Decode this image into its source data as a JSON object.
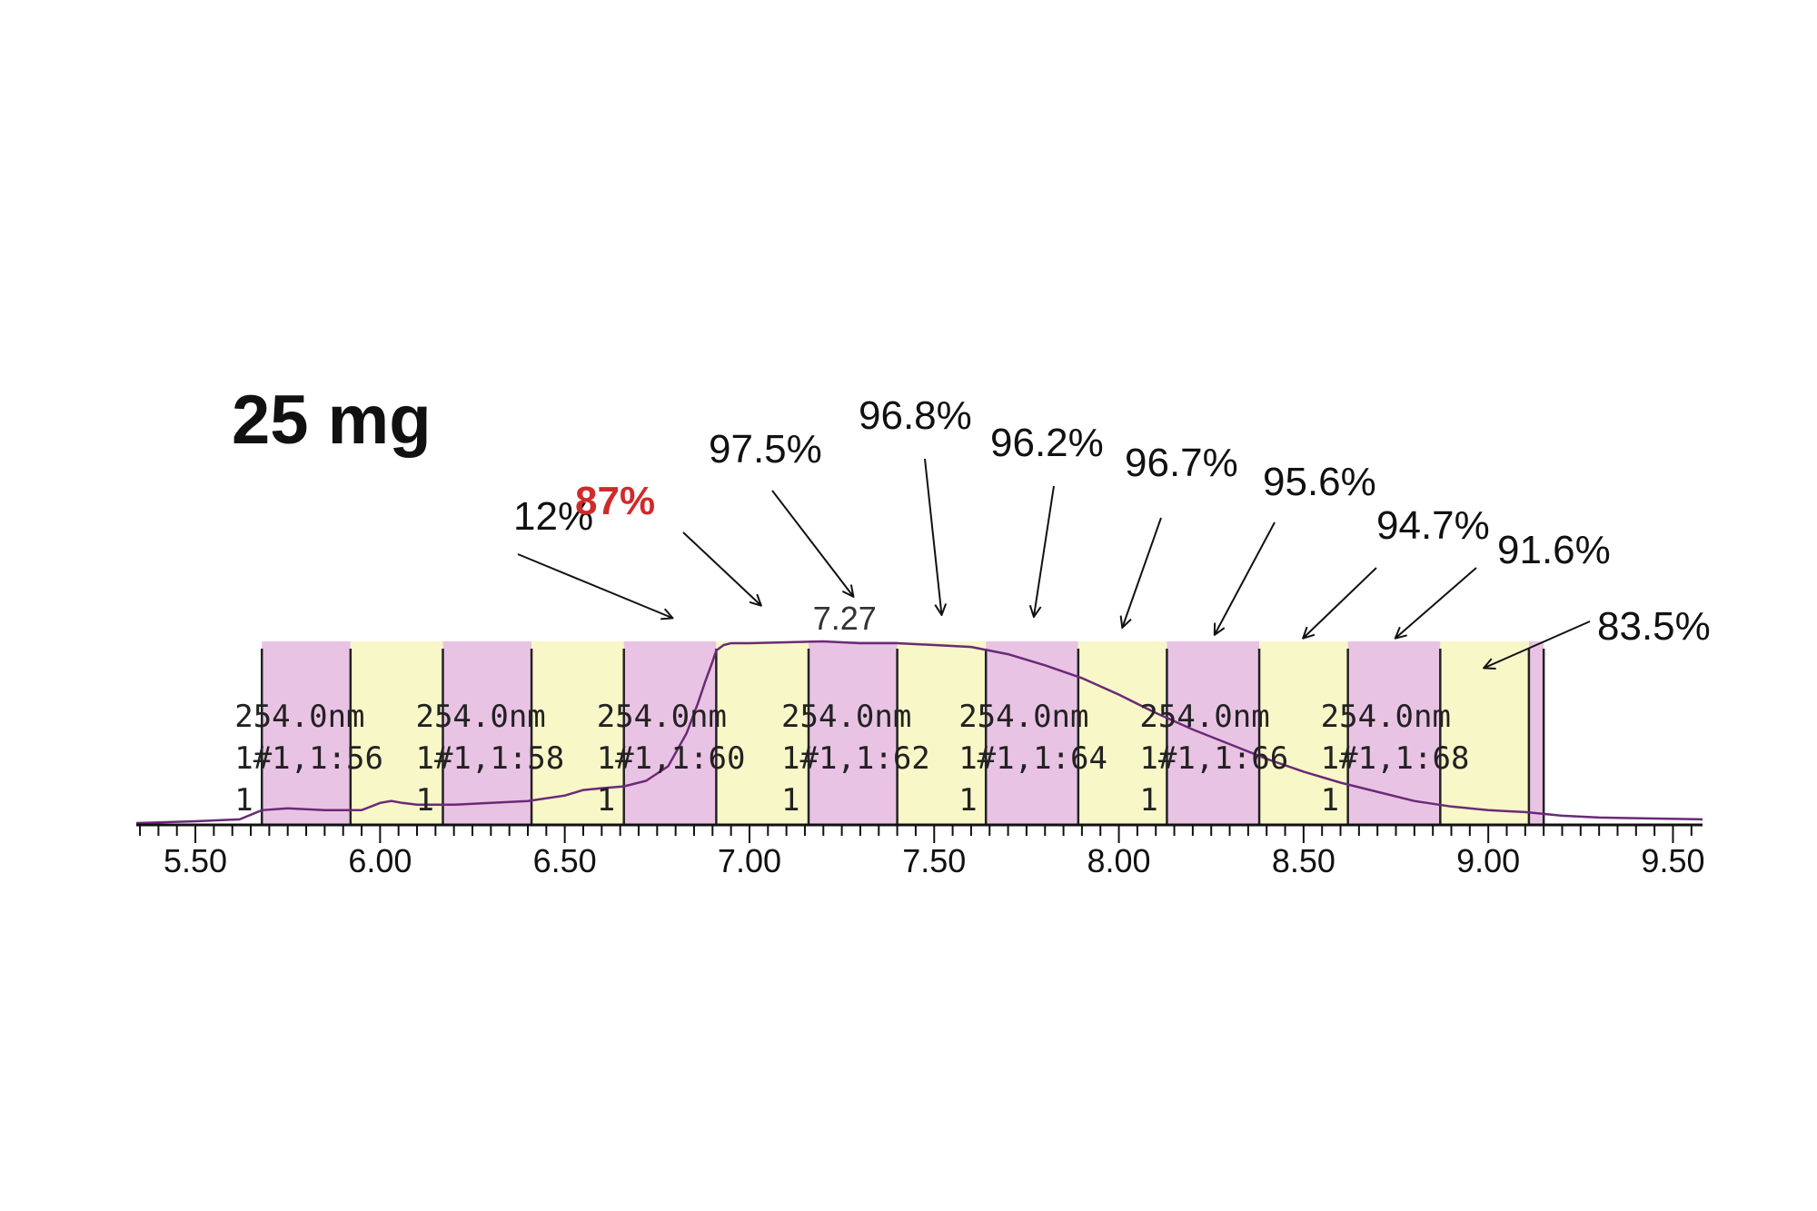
{
  "title": "25 mg",
  "colors": {
    "fraction_pink": "#e9c3e4",
    "fraction_yellow": "#f8f7c8",
    "trace": "#6a2a78",
    "highlight": "#d12a2a",
    "axis": "#111111"
  },
  "chart_data": {
    "type": "line",
    "title": "",
    "xlabel": "",
    "ylabel": "",
    "xlim": [
      5.34,
      9.58
    ],
    "ylim": [
      0,
      1
    ],
    "xticks": [
      "5.50",
      "6.00",
      "6.50",
      "7.00",
      "7.50",
      "8.00",
      "8.50",
      "9.00",
      "9.50"
    ],
    "peak_label": {
      "x": 7.27,
      "text": "7.27"
    },
    "fractions": [
      {
        "start": 5.68,
        "end": 5.92,
        "color": "pink"
      },
      {
        "start": 5.92,
        "end": 6.17,
        "color": "yellow"
      },
      {
        "start": 6.17,
        "end": 6.41,
        "color": "pink"
      },
      {
        "start": 6.41,
        "end": 6.66,
        "color": "yellow"
      },
      {
        "start": 6.66,
        "end": 6.91,
        "color": "pink"
      },
      {
        "start": 6.91,
        "end": 7.16,
        "color": "yellow"
      },
      {
        "start": 7.16,
        "end": 7.4,
        "color": "pink"
      },
      {
        "start": 7.4,
        "end": 7.64,
        "color": "yellow"
      },
      {
        "start": 7.64,
        "end": 7.89,
        "color": "pink"
      },
      {
        "start": 7.89,
        "end": 8.13,
        "color": "yellow"
      },
      {
        "start": 8.13,
        "end": 8.38,
        "color": "pink"
      },
      {
        "start": 8.38,
        "end": 8.62,
        "color": "yellow"
      },
      {
        "start": 8.62,
        "end": 8.87,
        "color": "pink"
      },
      {
        "start": 8.87,
        "end": 9.11,
        "color": "yellow"
      },
      {
        "start": 9.11,
        "end": 9.15,
        "color": "pink"
      }
    ],
    "fraction_labels": [
      {
        "x": 5.68,
        "lines": [
          "254.0nm",
          "1#1,1:56",
          "1"
        ]
      },
      {
        "x": 6.17,
        "lines": [
          "254.0nm",
          "1#1,1:58",
          "1"
        ]
      },
      {
        "x": 6.66,
        "lines": [
          "254.0nm",
          "1#1,1:60",
          "1"
        ]
      },
      {
        "x": 7.16,
        "lines": [
          "254.0nm",
          "1#1,1:62",
          "1"
        ]
      },
      {
        "x": 7.64,
        "lines": [
          "254.0nm",
          "1#1,1:64",
          "1"
        ]
      },
      {
        "x": 8.13,
        "lines": [
          "254.0nm",
          "1#1,1:66",
          "1"
        ]
      },
      {
        "x": 8.62,
        "lines": [
          "254.0nm",
          "1#1,1:68",
          "1"
        ]
      }
    ],
    "purity_annotations": [
      {
        "text": "12%",
        "target_x": 6.79,
        "highlight": false
      },
      {
        "text": "87%",
        "target_x": 7.03,
        "highlight": true
      },
      {
        "text": "97.5%",
        "target_x": 7.28,
        "highlight": false
      },
      {
        "text": "96.8%",
        "target_x": 7.52,
        "highlight": false
      },
      {
        "text": "96.2%",
        "target_x": 7.77,
        "highlight": false
      },
      {
        "text": "96.7%",
        "target_x": 8.01,
        "highlight": false
      },
      {
        "text": "95.6%",
        "target_x": 8.26,
        "highlight": false
      },
      {
        "text": "94.7%",
        "target_x": 8.5,
        "highlight": false
      },
      {
        "text": "91.6%",
        "target_x": 8.75,
        "highlight": false
      },
      {
        "text": "83.5%",
        "target_x": 8.99,
        "highlight": false
      }
    ],
    "series": [
      {
        "x": [
          5.34,
          5.5,
          5.62,
          5.68,
          5.75,
          5.85,
          5.95,
          6.0,
          6.03,
          6.06,
          6.1,
          6.2,
          6.3,
          6.4,
          6.5,
          6.55,
          6.6,
          6.66,
          6.72,
          6.78,
          6.83,
          6.86,
          6.88,
          6.9,
          6.91,
          6.93,
          6.95,
          7.0,
          7.2,
          7.3,
          7.4,
          7.5,
          7.6,
          7.65,
          7.7,
          7.8,
          7.9,
          8.0,
          8.1,
          8.2,
          8.3,
          8.4,
          8.5,
          8.6,
          8.7,
          8.8,
          8.9,
          9.0,
          9.1,
          9.2,
          9.3,
          9.58
        ],
        "y": [
          0.01,
          0.02,
          0.03,
          0.08,
          0.09,
          0.08,
          0.08,
          0.12,
          0.13,
          0.12,
          0.11,
          0.11,
          0.12,
          0.13,
          0.16,
          0.19,
          0.2,
          0.21,
          0.24,
          0.32,
          0.5,
          0.66,
          0.78,
          0.89,
          0.95,
          0.98,
          0.99,
          0.99,
          1.0,
          0.99,
          0.99,
          0.98,
          0.97,
          0.95,
          0.93,
          0.87,
          0.8,
          0.71,
          0.61,
          0.52,
          0.44,
          0.36,
          0.29,
          0.23,
          0.18,
          0.13,
          0.1,
          0.08,
          0.07,
          0.05,
          0.04,
          0.03
        ]
      }
    ]
  }
}
